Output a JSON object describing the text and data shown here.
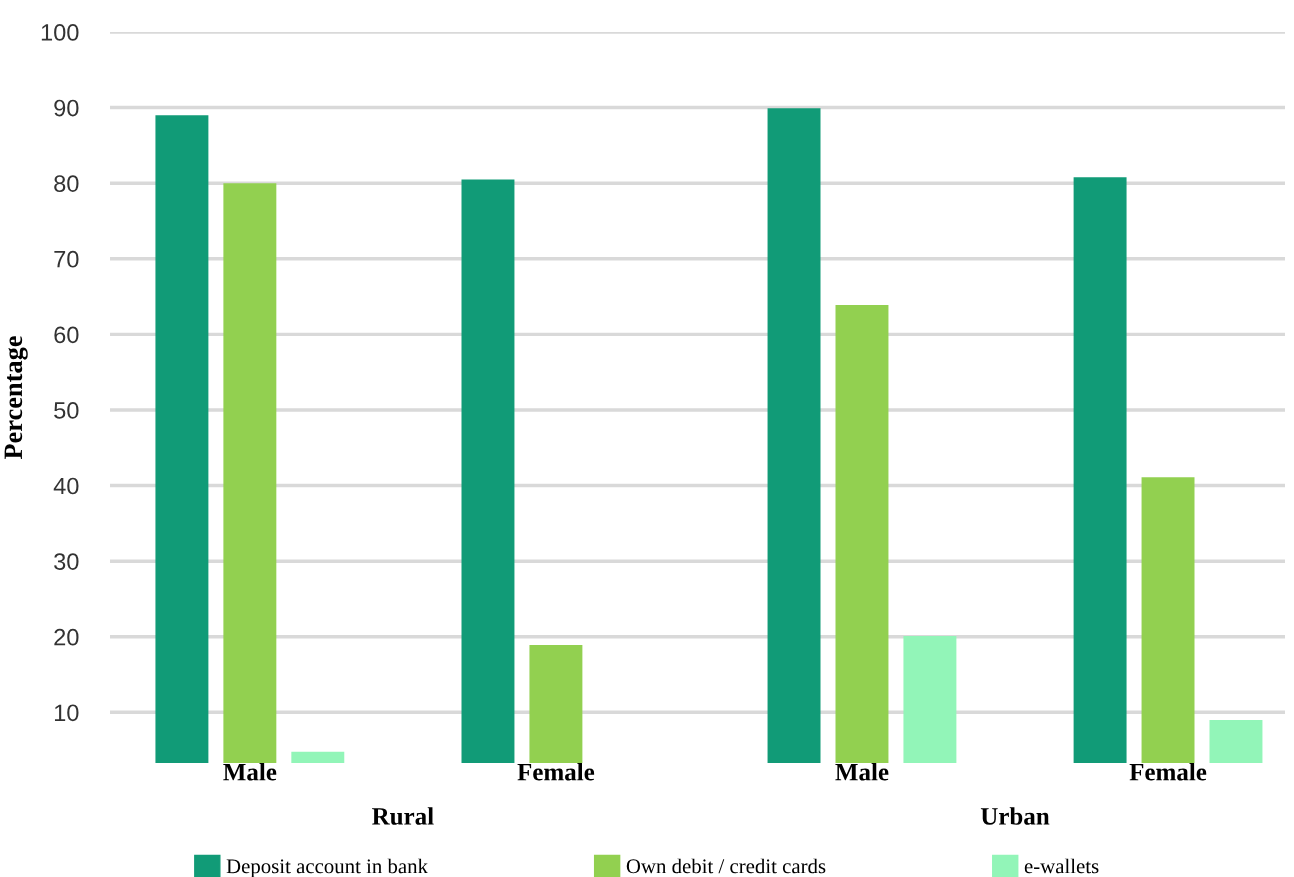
{
  "chart_data": {
    "type": "bar",
    "ylabel": "Percentage",
    "categories": [
      "Male",
      "Female",
      "Male",
      "Female"
    ],
    "series": [
      {
        "name": "Deposit account in bank",
        "color": "#119b77",
        "values": [
          89.0,
          80.5,
          89.9,
          80.8
        ]
      },
      {
        "name": "Own debit / credit cards",
        "color": "#92d050",
        "values": [
          80.0,
          18.9,
          63.9,
          41.1
        ]
      },
      {
        "name": "e-wallets",
        "color": "#92f5b8",
        "values": [
          4.8,
          null,
          20.1,
          9.0
        ]
      }
    ],
    "annotations": [
      "Rural",
      "Urban"
    ],
    "ylim": [
      3.3,
      100
    ],
    "yticks": [
      10,
      20,
      30,
      40,
      50,
      60,
      70,
      80,
      90,
      100
    ],
    "grid": "y",
    "legend": "bottom"
  }
}
